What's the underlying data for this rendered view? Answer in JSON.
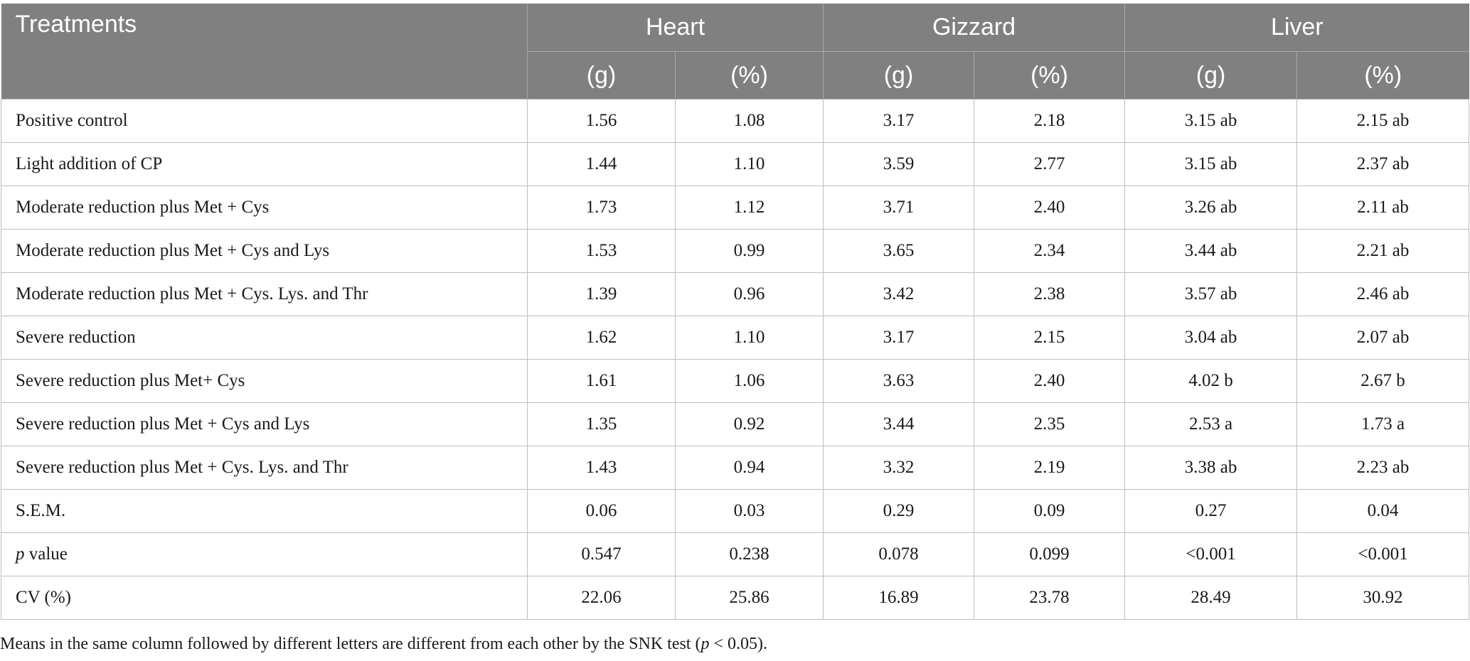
{
  "header": {
    "treatments": "Treatments",
    "groups": [
      "Heart",
      "Gizzard",
      "Liver"
    ],
    "units": [
      "(g)",
      "(%)",
      "(g)",
      "(%)",
      "(g)",
      "(%)"
    ]
  },
  "rows": [
    {
      "label": "Positive control",
      "values": [
        "1.56",
        "1.08",
        "3.17",
        "2.18",
        "3.15 ab",
        "2.15 ab"
      ]
    },
    {
      "label": "Light addition of CP",
      "values": [
        "1.44",
        "1.10",
        "3.59",
        "2.77",
        "3.15 ab",
        "2.37 ab"
      ]
    },
    {
      "label": "Moderate reduction plus Met + Cys",
      "values": [
        "1.73",
        "1.12",
        "3.71",
        "2.40",
        "3.26 ab",
        "2.11 ab"
      ]
    },
    {
      "label": "Moderate reduction plus Met + Cys and Lys",
      "values": [
        "1.53",
        "0.99",
        "3.65",
        "2.34",
        "3.44 ab",
        "2.21 ab"
      ]
    },
    {
      "label": "Moderate reduction plus Met + Cys. Lys. and Thr",
      "values": [
        "1.39",
        "0.96",
        "3.42",
        "2.38",
        "3.57 ab",
        "2.46 ab"
      ]
    },
    {
      "label": "Severe reduction",
      "values": [
        "1.62",
        "1.10",
        "3.17",
        "2.15",
        "3.04 ab",
        "2.07 ab"
      ]
    },
    {
      "label": "Severe reduction plus Met+ Cys",
      "values": [
        "1.61",
        "1.06",
        "3.63",
        "2.40",
        "4.02 b",
        "2.67 b"
      ]
    },
    {
      "label": "Severe reduction plus Met + Cys and Lys",
      "values": [
        "1.35",
        "0.92",
        "3.44",
        "2.35",
        "2.53 a",
        "1.73 a"
      ]
    },
    {
      "label": "Severe reduction plus Met + Cys. Lys. and Thr",
      "values": [
        "1.43",
        "0.94",
        "3.32",
        "2.19",
        "3.38 ab",
        "2.23 ab"
      ]
    },
    {
      "label": "S.E.M.",
      "values": [
        "0.06",
        "0.03",
        "0.29",
        "0.09",
        "0.27",
        "0.04"
      ]
    },
    {
      "label_italic": "p",
      "label": " value",
      "values": [
        "0.547",
        "0.238",
        "0.078",
        "0.099",
        "<0.001",
        "<0.001"
      ]
    },
    {
      "label": "CV (%)",
      "values": [
        "22.06",
        "25.86",
        "16.89",
        "23.78",
        "28.49",
        "30.92"
      ]
    }
  ],
  "footnote": {
    "before": "Means in the same column followed by different letters are different from each other by the SNK test (",
    "italic": "p",
    "after": " < 0.05)."
  }
}
